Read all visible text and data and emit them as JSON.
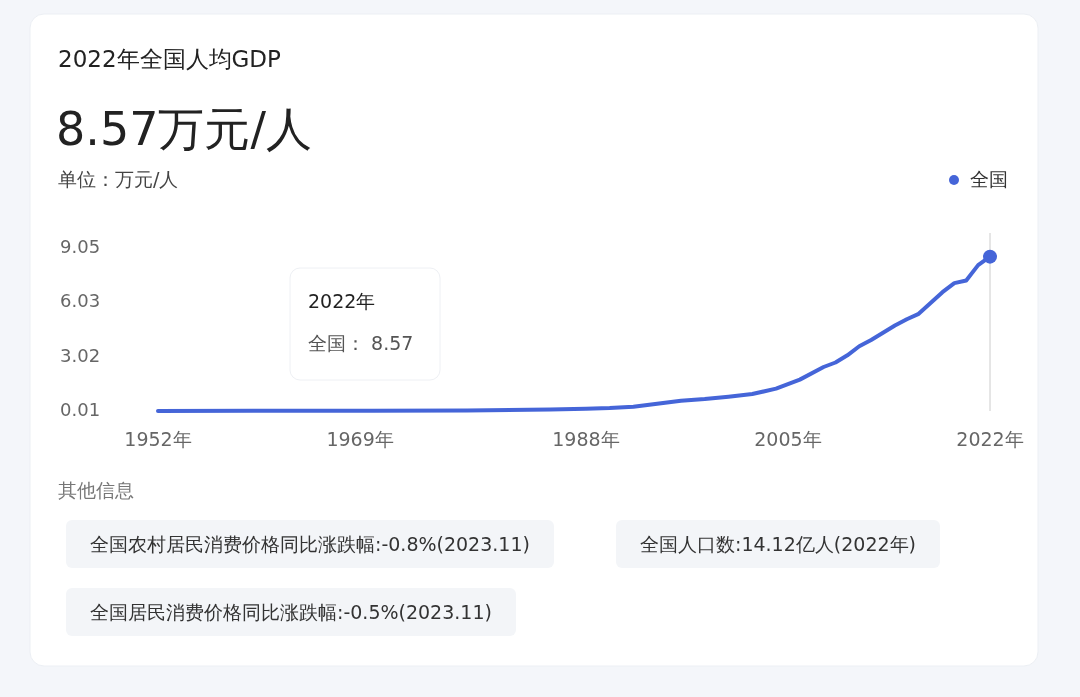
{
  "chart_data": {
    "type": "line",
    "title": "2022年全国人均GDP",
    "subtitle": "8.57万元/人",
    "ylabel": "单位：万元/人",
    "x": [
      1952,
      1960,
      1970,
      1978,
      1985,
      1988,
      1990,
      1992,
      1994,
      1996,
      1998,
      2000,
      2002,
      2004,
      2006,
      2008,
      2009,
      2010,
      2011,
      2012,
      2013,
      2014,
      2015,
      2016,
      2017,
      2018,
      2019,
      2020,
      2021,
      2022
    ],
    "series": [
      {
        "name": "全国",
        "color": "#4565d8",
        "values": [
          0.01,
          0.02,
          0.03,
          0.04,
          0.09,
          0.14,
          0.17,
          0.24,
          0.41,
          0.58,
          0.67,
          0.8,
          0.95,
          1.25,
          1.75,
          2.45,
          2.7,
          3.1,
          3.6,
          3.95,
          4.35,
          4.75,
          5.1,
          5.4,
          6.0,
          6.6,
          7.1,
          7.25,
          8.1,
          8.57
        ]
      }
    ],
    "xlim": [
      1952,
      2022
    ],
    "ylim": [
      0.01,
      9.05
    ],
    "xticks": [
      {
        "value": 1952,
        "label": "1952年"
      },
      {
        "value": 1969,
        "label": "1969年"
      },
      {
        "value": 1988,
        "label": "1988年"
      },
      {
        "value": 2005,
        "label": "2005年"
      },
      {
        "value": 2022,
        "label": "2022年"
      }
    ],
    "yticks": [
      0.01,
      3.02,
      6.03,
      9.05
    ],
    "ref_lines": [
      {
        "axis": "x",
        "value": 2022,
        "color": "#cccccc"
      }
    ],
    "annotations": [
      "2022年",
      "全国：  8.57",
      "其他信息",
      "全国农村居民消费价格同比涨跌幅:-0.8%(2023.11)",
      "全国人口数:14.12亿人(2022年)",
      "全国居民消费价格同比涨跌幅:-0.5%(2023.11)"
    ],
    "legend": "top right",
    "grid": false,
    "marker": "none",
    "line_style": "solid"
  }
}
